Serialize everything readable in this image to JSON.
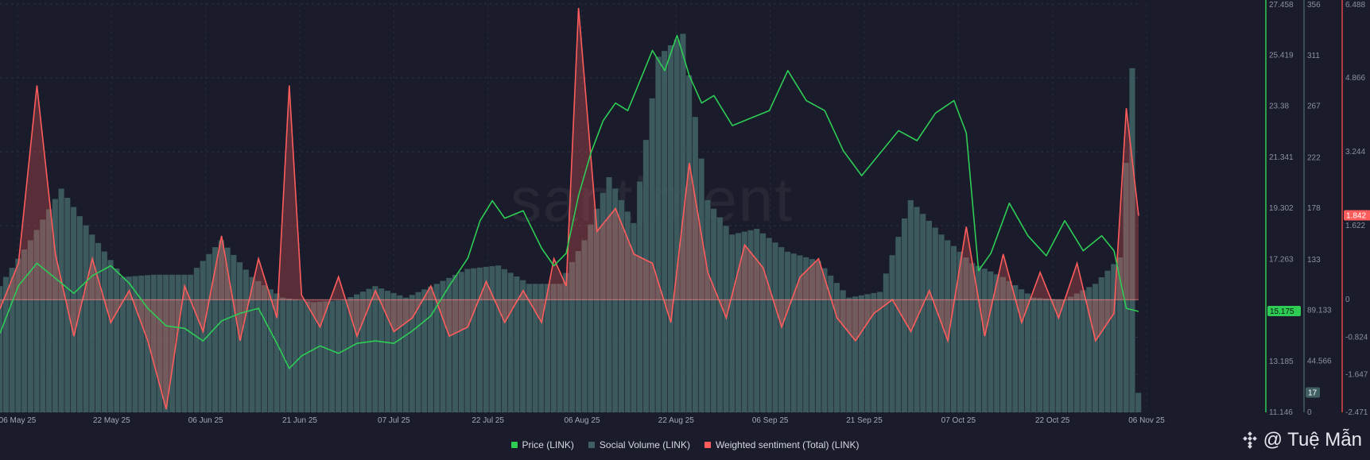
{
  "watermark": "santiment",
  "signature": {
    "handle": "@ Tuệ Mẫn"
  },
  "legend": [
    {
      "label": "Price (LINK)",
      "color": "#2ecc55"
    },
    {
      "label": "Social Volume (LINK)",
      "color": "#3f5f63"
    },
    {
      "label": "Weighted sentiment (Total) (LINK)",
      "color": "#ff5c5c"
    }
  ],
  "chart_data": {
    "type": "line",
    "title": "",
    "x_ticks": [
      "06 May 25",
      "22 May 25",
      "06 Jun 25",
      "21 Jun 25",
      "07 Jul 25",
      "22 Jul 25",
      "06 Aug 25",
      "22 Aug 25",
      "06 Sep 25",
      "21 Sep 25",
      "07 Oct 25",
      "22 Oct 25",
      "06 Nov 25"
    ],
    "x_range": [
      "2025-05-05",
      "2025-11-06"
    ],
    "axes": {
      "price": {
        "ticks": [
          "27.458",
          "25.419",
          "23.38",
          "21.341",
          "19.302",
          "17.263",
          "13.185",
          "11.146"
        ],
        "range": [
          11.146,
          27.458
        ],
        "color": "#2ecc55"
      },
      "social_volume": {
        "ticks": [
          "356",
          "311",
          "267",
          "222",
          "178",
          "133",
          "89.133",
          "44.566",
          "0"
        ],
        "range": [
          0,
          356
        ],
        "color": "#3f5f63"
      },
      "sentiment": {
        "ticks": [
          "6.488",
          "4.866",
          "3.244",
          "1.622",
          "0",
          "-0.824",
          "-1.647",
          "-2.471"
        ],
        "range": [
          -2.471,
          6.488
        ],
        "color": "#ff5c5c"
      }
    },
    "current_labels": {
      "price": "15.175",
      "social_volume": "17",
      "sentiment": "1.842"
    },
    "series": [
      {
        "name": "Price (LINK)",
        "axis": "price",
        "dates": [
          "2025-05-05",
          "2025-05-08",
          "2025-05-11",
          "2025-05-14",
          "2025-05-17",
          "2025-05-20",
          "2025-05-23",
          "2025-05-26",
          "2025-05-29",
          "2025-06-01",
          "2025-06-04",
          "2025-06-07",
          "2025-06-10",
          "2025-06-13",
          "2025-06-16",
          "2025-06-19",
          "2025-06-21",
          "2025-06-23",
          "2025-06-26",
          "2025-06-29",
          "2025-07-02",
          "2025-07-05",
          "2025-07-08",
          "2025-07-11",
          "2025-07-14",
          "2025-07-17",
          "2025-07-20",
          "2025-07-22",
          "2025-07-24",
          "2025-07-26",
          "2025-07-29",
          "2025-08-01",
          "2025-08-03",
          "2025-08-05",
          "2025-08-07",
          "2025-08-09",
          "2025-08-11",
          "2025-08-13",
          "2025-08-15",
          "2025-08-17",
          "2025-08-19",
          "2025-08-21",
          "2025-08-23",
          "2025-08-25",
          "2025-08-27",
          "2025-08-29",
          "2025-09-01",
          "2025-09-04",
          "2025-09-07",
          "2025-09-10",
          "2025-09-13",
          "2025-09-16",
          "2025-09-19",
          "2025-09-22",
          "2025-09-25",
          "2025-09-28",
          "2025-10-01",
          "2025-10-04",
          "2025-10-07",
          "2025-10-09",
          "2025-10-11",
          "2025-10-13",
          "2025-10-16",
          "2025-10-19",
          "2025-10-22",
          "2025-10-25",
          "2025-10-28",
          "2025-10-31",
          "2025-11-02",
          "2025-11-04",
          "2025-11-06"
        ],
        "values": [
          14.3,
          16.2,
          17.1,
          16.5,
          15.9,
          16.6,
          17.0,
          16.3,
          15.3,
          14.6,
          14.5,
          14.0,
          14.8,
          15.1,
          15.3,
          13.9,
          12.9,
          13.4,
          13.8,
          13.5,
          13.9,
          14.0,
          13.9,
          14.4,
          15.0,
          16.2,
          17.3,
          18.8,
          19.6,
          18.9,
          19.2,
          17.7,
          17.0,
          17.5,
          19.8,
          21.5,
          22.8,
          23.5,
          23.2,
          24.4,
          25.6,
          24.8,
          26.2,
          24.6,
          23.5,
          23.8,
          22.6,
          22.9,
          23.2,
          24.8,
          23.6,
          23.2,
          21.6,
          20.6,
          21.5,
          22.4,
          22.0,
          23.1,
          23.6,
          22.3,
          16.8,
          17.5,
          19.5,
          18.2,
          17.4,
          18.8,
          17.6,
          18.2,
          17.6,
          15.3,
          15.175
        ]
      },
      {
        "name": "Social Volume (LINK)",
        "axis": "social_volume",
        "dates": [
          "2025-05-05",
          "2025-05-10",
          "2025-05-15",
          "2025-05-20",
          "2025-05-25",
          "2025-05-30",
          "2025-06-05",
          "2025-06-10",
          "2025-06-15",
          "2025-06-20",
          "2025-06-25",
          "2025-06-30",
          "2025-07-05",
          "2025-07-10",
          "2025-07-15",
          "2025-07-20",
          "2025-07-25",
          "2025-07-30",
          "2025-08-04",
          "2025-08-08",
          "2025-08-12",
          "2025-08-16",
          "2025-08-20",
          "2025-08-24",
          "2025-08-28",
          "2025-09-01",
          "2025-09-05",
          "2025-09-10",
          "2025-09-15",
          "2025-09-20",
          "2025-09-25",
          "2025-09-30",
          "2025-10-05",
          "2025-10-10",
          "2025-10-15",
          "2025-10-20",
          "2025-10-25",
          "2025-10-30",
          "2025-11-03",
          "2025-11-05",
          "2025-11-06"
        ],
        "values": [
          110,
          150,
          195,
          155,
          118,
          120,
          120,
          150,
          118,
          100,
          96,
          98,
          110,
          100,
          112,
          125,
          128,
          112,
          112,
          150,
          205,
          165,
          310,
          330,
          185,
          155,
          160,
          140,
          132,
          100,
          105,
          185,
          155,
          130,
          118,
          100,
          98,
          112,
          135,
          300,
          17
        ]
      },
      {
        "name": "Weighted sentiment (Total) (LINK)",
        "axis": "sentiment",
        "dates": [
          "2025-05-05",
          "2025-05-08",
          "2025-05-11",
          "2025-05-14",
          "2025-05-17",
          "2025-05-20",
          "2025-05-23",
          "2025-05-26",
          "2025-05-29",
          "2025-06-01",
          "2025-06-04",
          "2025-06-07",
          "2025-06-10",
          "2025-06-13",
          "2025-06-16",
          "2025-06-19",
          "2025-06-21",
          "2025-06-23",
          "2025-06-26",
          "2025-06-29",
          "2025-07-02",
          "2025-07-05",
          "2025-07-08",
          "2025-07-11",
          "2025-07-14",
          "2025-07-17",
          "2025-07-20",
          "2025-07-23",
          "2025-07-26",
          "2025-07-29",
          "2025-08-01",
          "2025-08-03",
          "2025-08-05",
          "2025-08-07",
          "2025-08-10",
          "2025-08-13",
          "2025-08-16",
          "2025-08-19",
          "2025-08-22",
          "2025-08-25",
          "2025-08-28",
          "2025-08-31",
          "2025-09-03",
          "2025-09-06",
          "2025-09-09",
          "2025-09-12",
          "2025-09-15",
          "2025-09-18",
          "2025-09-21",
          "2025-09-24",
          "2025-09-27",
          "2025-09-30",
          "2025-10-03",
          "2025-10-06",
          "2025-10-09",
          "2025-10-12",
          "2025-10-15",
          "2025-10-18",
          "2025-10-21",
          "2025-10-24",
          "2025-10-27",
          "2025-10-30",
          "2025-11-02",
          "2025-11-04",
          "2025-11-06"
        ],
        "values": [
          -0.2,
          0.8,
          4.7,
          1.0,
          -0.8,
          0.9,
          -0.5,
          0.2,
          -0.9,
          -2.4,
          0.3,
          -0.7,
          1.4,
          -0.9,
          0.9,
          -0.4,
          4.7,
          0.1,
          -0.6,
          0.5,
          -0.8,
          0.2,
          -0.7,
          -0.4,
          0.3,
          -0.8,
          -0.6,
          0.4,
          -0.5,
          0.2,
          -0.5,
          0.9,
          0.3,
          6.4,
          1.5,
          2.0,
          1.0,
          0.8,
          -0.5,
          3.0,
          0.6,
          -0.4,
          1.2,
          0.7,
          -0.6,
          0.5,
          0.9,
          -0.4,
          -0.9,
          -0.3,
          0.0,
          -0.7,
          0.2,
          -0.9,
          1.6,
          -0.8,
          1.0,
          -0.5,
          0.6,
          -0.4,
          0.8,
          -0.9,
          -0.3,
          4.2,
          1.842
        ]
      }
    ]
  }
}
